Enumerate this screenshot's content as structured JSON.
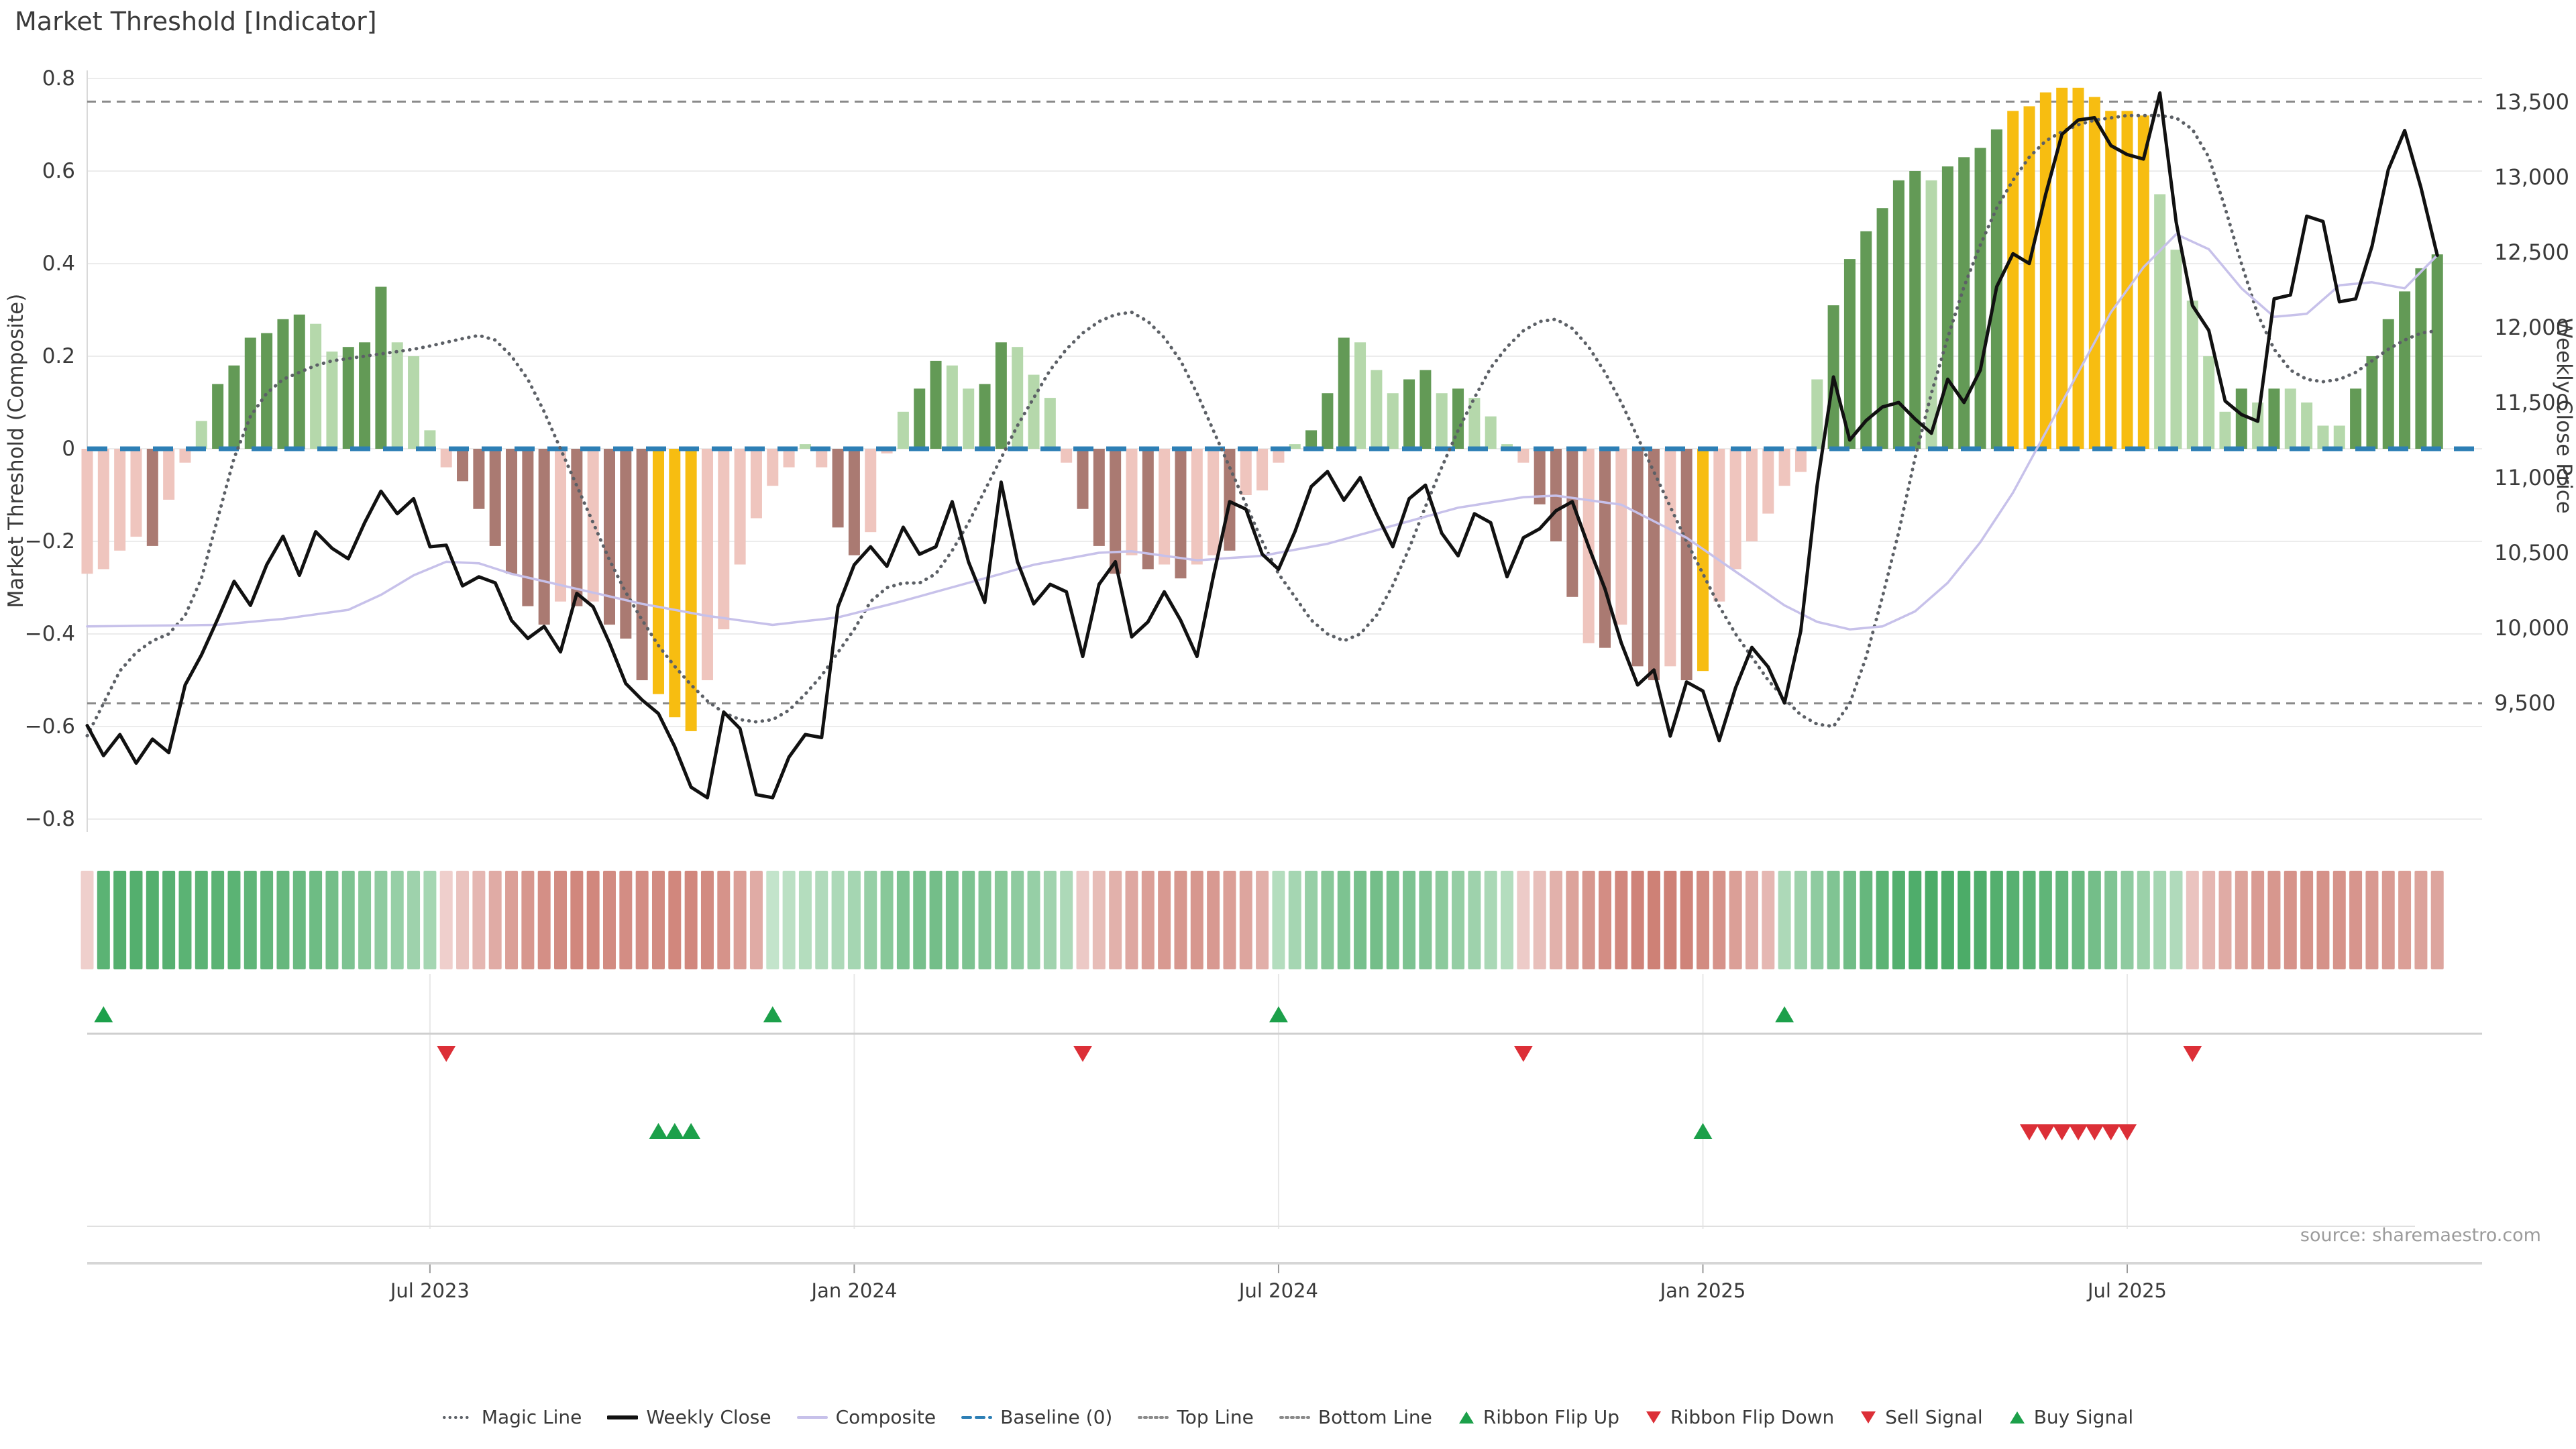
{
  "title": "Market Threshold [Indicator]",
  "source": "source: sharemaestro.com",
  "axes": {
    "left": {
      "label": "Market Threshold (Composite)"
    },
    "right": {
      "label": "Weekly Close Price"
    }
  },
  "chart_data": {
    "type": "combo",
    "frequency": "weekly",
    "n_weeks": 145,
    "x_ticks": [
      {
        "label": "Jul 2023",
        "week": 21
      },
      {
        "label": "Jan 2024",
        "week": 47
      },
      {
        "label": "Jul 2024",
        "week": 73
      },
      {
        "label": "Jan 2025",
        "week": 99
      },
      {
        "label": "Jul 2025",
        "week": 125
      }
    ],
    "left_axis": {
      "label": "Market Threshold (Composite)",
      "min": -0.8,
      "max": 0.8,
      "ticks": [
        0.8,
        0.6,
        0.4,
        0.2,
        0,
        -0.2,
        -0.4,
        -0.6,
        -0.8
      ]
    },
    "right_axis": {
      "label": "Weekly Close Price",
      "ticks": [
        13500,
        13000,
        12500,
        12000,
        11500,
        11000,
        10500,
        10000,
        9500
      ]
    },
    "reference_lines": {
      "baseline": 0,
      "top_line": 0.75,
      "bottom_line": -0.55
    },
    "bars": {
      "name": "Market Threshold",
      "axis": "left",
      "palette": {
        "g": "#639a56",
        "G": "#b5d8ab",
        "p": "#efc5be",
        "P": "#aa7a72",
        "y": "#f7bd11"
      },
      "color_codes": "ppppPppGggggggGGgggGGGpPPPPPPpPpPPPyyyppppppGpPPppGggGGggGGGpPPPpPpPppPpppGgggGGGggGgGGGpPPPpPpPPpPyppppppGggggggGggggyyyyyyyyyGGGGGgGgGGGGgggggg",
      "values": [
        -0.27,
        -0.26,
        -0.22,
        -0.19,
        -0.21,
        -0.11,
        -0.03,
        0.06,
        0.14,
        0.18,
        0.24,
        0.25,
        0.28,
        0.29,
        0.27,
        0.21,
        0.22,
        0.23,
        0.35,
        0.23,
        0.2,
        0.04,
        -0.04,
        -0.07,
        -0.13,
        -0.21,
        -0.27,
        -0.34,
        -0.38,
        -0.33,
        -0.34,
        -0.33,
        -0.38,
        -0.41,
        -0.5,
        -0.53,
        -0.58,
        -0.61,
        -0.5,
        -0.39,
        -0.25,
        -0.15,
        -0.08,
        -0.04,
        0.01,
        -0.04,
        -0.17,
        -0.23,
        -0.18,
        -0.01,
        0.08,
        0.13,
        0.19,
        0.18,
        0.13,
        0.14,
        0.23,
        0.22,
        0.16,
        0.11,
        -0.03,
        -0.13,
        -0.21,
        -0.27,
        -0.23,
        -0.26,
        -0.25,
        -0.28,
        -0.25,
        -0.23,
        -0.22,
        -0.1,
        -0.09,
        -0.03,
        0.01,
        0.04,
        0.12,
        0.24,
        0.23,
        0.17,
        0.12,
        0.15,
        0.17,
        0.12,
        0.13,
        0.11,
        0.07,
        0.01,
        -0.03,
        -0.12,
        -0.2,
        -0.32,
        -0.42,
        -0.43,
        -0.38,
        -0.47,
        -0.5,
        -0.47,
        -0.5,
        -0.48,
        -0.33,
        -0.26,
        -0.2,
        -0.14,
        -0.08,
        -0.05,
        0.15,
        0.31,
        0.41,
        0.47,
        0.52,
        0.58,
        0.6,
        0.58,
        0.61,
        0.63,
        0.65,
        0.69,
        0.73,
        0.74,
        0.77,
        0.78,
        0.78,
        0.76,
        0.73,
        0.73,
        0.72,
        0.55,
        0.43,
        0.32,
        0.2,
        0.08,
        0.13,
        0.1,
        0.13,
        0.13,
        0.1,
        0.05,
        0.05,
        0.13,
        0.2,
        0.28,
        0.34,
        0.39,
        0.42
      ]
    },
    "lines": [
      {
        "name": "Weekly Close",
        "axis": "right",
        "style": "solid",
        "color": "#111111",
        "width": 5,
        "values": [
          9350,
          9150,
          9290,
          9100,
          9260,
          9170,
          9620,
          9820,
          10060,
          10310,
          10150,
          10420,
          10610,
          10350,
          10640,
          10530,
          10460,
          10700,
          10910,
          10760,
          10860,
          10540,
          10550,
          10280,
          10340,
          10300,
          10050,
          9930,
          10010,
          9840,
          10230,
          10140,
          9900,
          9630,
          9520,
          9430,
          9210,
          8940,
          8870,
          9440,
          9330,
          8890,
          8870,
          9140,
          9290,
          9270,
          10140,
          10420,
          10540,
          10410,
          10670,
          10490,
          10540,
          10840,
          10440,
          10170,
          10970,
          10440,
          10160,
          10290,
          10240,
          9810,
          10290,
          10440,
          9940,
          10040,
          10240,
          10050,
          9810,
          10340,
          10840,
          10790,
          10490,
          10390,
          10640,
          10940,
          11040,
          10850,
          11000,
          10760,
          10540,
          10860,
          10950,
          10630,
          10480,
          10760,
          10700,
          10340,
          10600,
          10660,
          10780,
          10840,
          10540,
          10260,
          9900,
          9620,
          9720,
          9280,
          9640,
          9580,
          9250,
          9600,
          9870,
          9740,
          9500,
          9980,
          10950,
          11670,
          11250,
          11380,
          11470,
          11500,
          11390,
          11295,
          11655,
          11500,
          11715,
          12270,
          12490,
          12425,
          12885,
          13285,
          13380,
          13395,
          13210,
          13150,
          13120,
          13560,
          12700,
          12145,
          11980,
          11510,
          11420,
          11375,
          12190,
          12215,
          12740,
          12705,
          12170,
          12190,
          12540,
          13050,
          13310,
          12930,
          12480
        ]
      },
      {
        "name": "Composite",
        "axis": "right",
        "style": "solid",
        "color": "#c7c1ea",
        "width": 3.5,
        "values": [
          10010,
          10011,
          10012,
          10014,
          10015,
          10016,
          10017,
          10019,
          10020,
          10030,
          10040,
          10050,
          10060,
          10075,
          10090,
          10105,
          10120,
          10170,
          10220,
          10285,
          10350,
          10395,
          10440,
          10435,
          10430,
          10395,
          10360,
          10335,
          10310,
          10285,
          10260,
          10235,
          10210,
          10185,
          10160,
          10140,
          10120,
          10100,
          10080,
          10065,
          10050,
          10035,
          10020,
          10032,
          10045,
          10057,
          10070,
          10097,
          10125,
          10152,
          10180,
          10210,
          10240,
          10270,
          10300,
          10330,
          10360,
          10390,
          10420,
          10440,
          10460,
          10480,
          10500,
          10505,
          10510,
          10495,
          10480,
          10465,
          10450,
          10457,
          10465,
          10472,
          10480,
          10500,
          10520,
          10540,
          10560,
          10590,
          10620,
          10650,
          10680,
          10710,
          10740,
          10770,
          10800,
          10817,
          10835,
          10852,
          10870,
          10875,
          10880,
          10865,
          10850,
          10835,
          10820,
          10765,
          10710,
          10655,
          10600,
          10525,
          10450,
          10375,
          10300,
          10225,
          10150,
          10095,
          10040,
          10015,
          9990,
          10000,
          10010,
          10060,
          10110,
          10205,
          10300,
          10435,
          10570,
          10735,
          10900,
          11100,
          11300,
          11500,
          11700,
          11900,
          12100,
          12250,
          12400,
          12510,
          12620,
          12570,
          12520,
          12390,
          12260,
          12165,
          12070,
          12080,
          12090,
          12185,
          12280,
          12290,
          12300,
          12280,
          12260,
          12370,
          12480
        ]
      },
      {
        "name": "Magic Line",
        "axis": "left",
        "style": "dotted",
        "color": "#5c6066",
        "width": 5,
        "values": [
          -0.62,
          -0.55,
          -0.48,
          -0.44,
          -0.415,
          -0.4,
          -0.36,
          -0.28,
          -0.15,
          -0.02,
          0.07,
          0.12,
          0.15,
          0.165,
          0.18,
          0.19,
          0.195,
          0.2,
          0.205,
          0.21,
          0.215,
          0.222,
          0.23,
          0.238,
          0.245,
          0.235,
          0.2,
          0.15,
          0.08,
          0.0,
          -0.08,
          -0.16,
          -0.24,
          -0.31,
          -0.37,
          -0.425,
          -0.47,
          -0.51,
          -0.545,
          -0.57,
          -0.585,
          -0.59,
          -0.585,
          -0.565,
          -0.53,
          -0.49,
          -0.44,
          -0.39,
          -0.33,
          -0.3,
          -0.29,
          -0.29,
          -0.27,
          -0.22,
          -0.16,
          -0.09,
          -0.02,
          0.05,
          0.11,
          0.17,
          0.215,
          0.25,
          0.275,
          0.29,
          0.295,
          0.275,
          0.24,
          0.19,
          0.12,
          0.04,
          -0.04,
          -0.12,
          -0.2,
          -0.27,
          -0.32,
          -0.37,
          -0.4,
          -0.415,
          -0.4,
          -0.36,
          -0.295,
          -0.215,
          -0.125,
          -0.04,
          0.04,
          0.11,
          0.175,
          0.22,
          0.255,
          0.275,
          0.28,
          0.26,
          0.22,
          0.165,
          0.1,
          0.025,
          -0.05,
          -0.125,
          -0.2,
          -0.27,
          -0.34,
          -0.4,
          -0.45,
          -0.5,
          -0.54,
          -0.575,
          -0.595,
          -0.6,
          -0.55,
          -0.45,
          -0.32,
          -0.18,
          -0.02,
          0.12,
          0.24,
          0.35,
          0.44,
          0.52,
          0.58,
          0.63,
          0.665,
          0.685,
          0.7,
          0.71,
          0.715,
          0.72,
          0.72,
          0.72,
          0.715,
          0.69,
          0.63,
          0.52,
          0.4,
          0.29,
          0.215,
          0.17,
          0.15,
          0.145,
          0.15,
          0.165,
          0.19,
          0.215,
          0.235,
          0.25,
          0.255
        ]
      }
    ],
    "ribbon": {
      "green_strong": "#45a862",
      "green_pale": "#d9eedd",
      "red_strong": "#c4695c",
      "red_pale": "#f6e1e0",
      "values": [
        -0.15,
        0.85,
        0.9,
        0.9,
        0.9,
        0.88,
        0.85,
        0.85,
        0.85,
        0.85,
        0.82,
        0.8,
        0.78,
        0.75,
        0.72,
        0.68,
        0.62,
        0.55,
        0.5,
        0.45,
        0.4,
        0.35,
        -0.15,
        -0.25,
        -0.35,
        -0.45,
        -0.55,
        -0.62,
        -0.68,
        -0.72,
        -0.75,
        -0.75,
        -0.72,
        -0.7,
        -0.7,
        -0.72,
        -0.75,
        -0.75,
        -0.72,
        -0.65,
        -0.55,
        -0.45,
        0.15,
        0.2,
        0.25,
        0.28,
        0.3,
        0.35,
        0.45,
        0.55,
        0.62,
        0.66,
        0.68,
        0.66,
        0.62,
        0.58,
        0.55,
        0.5,
        0.45,
        0.38,
        0.3,
        -0.2,
        -0.3,
        -0.4,
        -0.48,
        -0.55,
        -0.6,
        -0.62,
        -0.62,
        -0.6,
        -0.55,
        -0.5,
        -0.42,
        0.25,
        0.35,
        0.45,
        0.55,
        0.62,
        0.66,
        0.68,
        0.66,
        0.62,
        0.58,
        0.52,
        0.46,
        0.4,
        0.32,
        0.25,
        -0.18,
        -0.28,
        -0.4,
        -0.52,
        -0.62,
        -0.7,
        -0.75,
        -0.78,
        -0.8,
        -0.8,
        -0.78,
        -0.72,
        -0.65,
        -0.55,
        -0.45,
        -0.35,
        0.3,
        0.4,
        0.5,
        0.6,
        0.7,
        0.78,
        0.85,
        0.9,
        0.93,
        0.95,
        0.95,
        0.95,
        0.93,
        0.9,
        0.88,
        0.85,
        0.82,
        0.8,
        0.75,
        0.68,
        0.6,
        0.5,
        0.42,
        0.35,
        0.28,
        -0.25,
        -0.35,
        -0.45,
        -0.52,
        -0.58,
        -0.62,
        -0.65,
        -0.66,
        -0.66,
        -0.65,
        -0.63,
        -0.6,
        -0.58,
        -0.55,
        -0.52,
        -0.5
      ]
    },
    "signals": {
      "up_color": "#1ca04a",
      "down_color": "#dc2f37",
      "ribbon_flip_up": [
        1,
        42,
        73,
        104
      ],
      "ribbon_flip_down": [
        22,
        61,
        88,
        129
      ],
      "buy": [
        35,
        36,
        37,
        99
      ],
      "sell": [
        119,
        120,
        121,
        122,
        123,
        124,
        125
      ]
    }
  },
  "legend": {
    "items": [
      {
        "label": "Magic Line",
        "swatch": "dotted",
        "color": "#5c6066"
      },
      {
        "label": "Weekly Close",
        "swatch": "solid",
        "color": "#111111"
      },
      {
        "label": "Composite",
        "swatch": "solid",
        "color": "#c7c1ea"
      },
      {
        "label": "Baseline (0)",
        "swatch": "dashed",
        "color": "#2d7fb5"
      },
      {
        "label": "Top Line",
        "swatch": "finedot",
        "color": "#8a8a8a"
      },
      {
        "label": "Bottom Line",
        "swatch": "finedot",
        "color": "#8a8a8a"
      },
      {
        "label": "Ribbon Flip Up",
        "swatch": "tri-up",
        "color": "#1ca04a"
      },
      {
        "label": "Ribbon Flip Down",
        "swatch": "tri-down",
        "color": "#dc2f37"
      },
      {
        "label": "Sell Signal",
        "swatch": "tri-down",
        "color": "#dc2f37"
      },
      {
        "label": "Buy Signal",
        "swatch": "tri-up",
        "color": "#1ca04a"
      }
    ]
  }
}
